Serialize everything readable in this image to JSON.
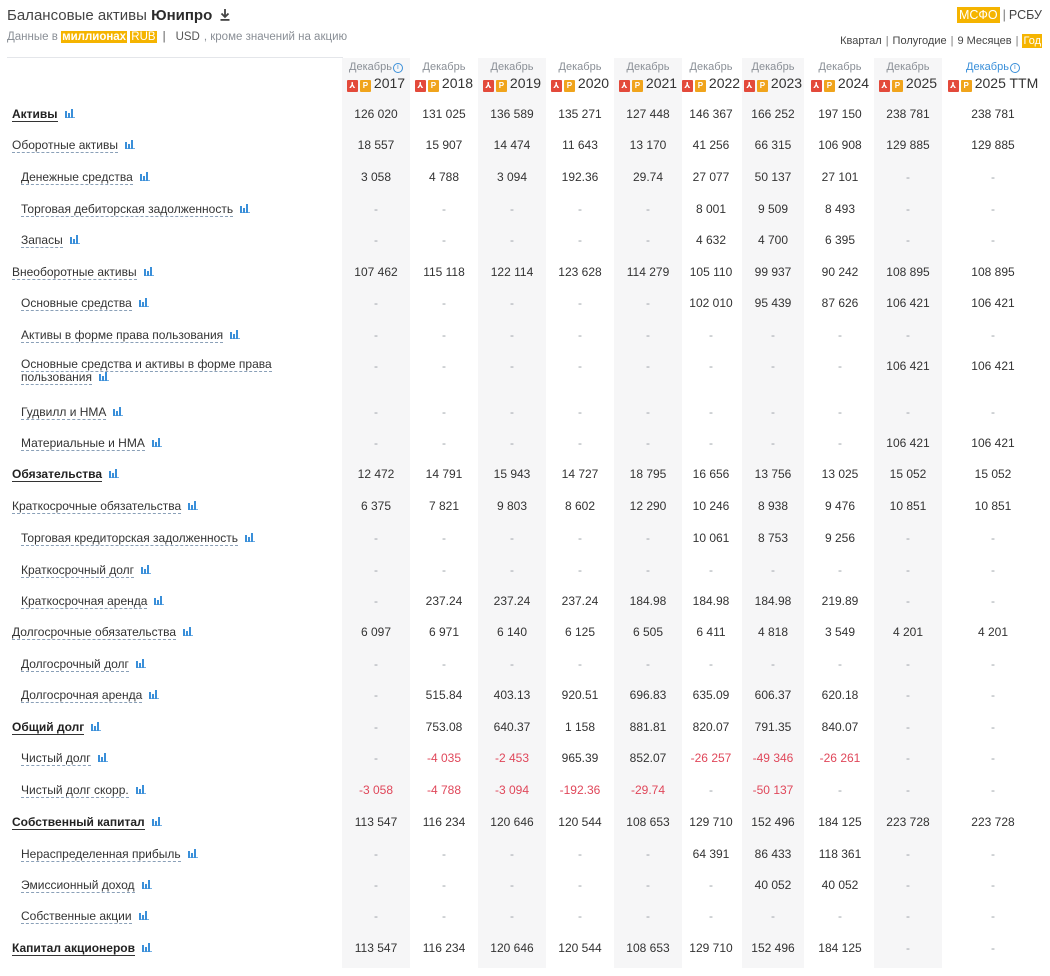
{
  "header": {
    "title_prefix": "Балансовые активы",
    "company": "Юнипро",
    "download_icon": "download-icon",
    "sub_prefix": "Данные в",
    "units": "миллионах",
    "currency_rub": "RUB",
    "currency_usd": "USD",
    "sub_suffix": ", кроме значений на акцию"
  },
  "standards": {
    "active": "МСФО",
    "other": "РСБУ"
  },
  "periods": {
    "quarter": "Квартал",
    "half": "Полугодие",
    "nine": "9 Месяцев",
    "year": "Год"
  },
  "columns": [
    {
      "month": "Декабрь",
      "year": "2017",
      "info": true
    },
    {
      "month": "Декабрь",
      "year": "2018"
    },
    {
      "month": "Декабрь",
      "year": "2019"
    },
    {
      "month": "Декабрь",
      "year": "2020"
    },
    {
      "month": "Декабрь",
      "year": "2021"
    },
    {
      "month": "Декабрь",
      "year": "2022"
    },
    {
      "month": "Декабрь",
      "year": "2023"
    },
    {
      "month": "Декабрь",
      "year": "2024"
    },
    {
      "month": "Декабрь",
      "year": "2025"
    },
    {
      "month": "Декабрь",
      "year": "2025 TTM",
      "info": true,
      "ttm": true
    }
  ],
  "icons": {
    "pdf": "pdf-icon",
    "report": "report-icon",
    "chart": "bar-chart-icon",
    "info": "info-icon"
  },
  "rows": [
    {
      "label": "Активы",
      "bold": true,
      "indent": false,
      "values": [
        "126 020",
        "131 025",
        "136 589",
        "135 271",
        "127 448",
        "146 367",
        "166 252",
        "197 150",
        "238 781",
        "238 781"
      ]
    },
    {
      "label": "Оборотные активы",
      "bold": false,
      "indent": false,
      "values": [
        "18 557",
        "15 907",
        "14 474",
        "11 643",
        "13 170",
        "41 256",
        "66 315",
        "106 908",
        "129 885",
        "129 885"
      ]
    },
    {
      "label": "Денежные средства",
      "bold": false,
      "indent": true,
      "values": [
        "3 058",
        "4 788",
        "3 094",
        "192.36",
        "29.74",
        "27 077",
        "50 137",
        "27 101",
        "-",
        "-"
      ]
    },
    {
      "label": "Торговая дебиторская задолженность",
      "bold": false,
      "indent": true,
      "values": [
        "-",
        "-",
        "-",
        "-",
        "-",
        "8 001",
        "9 509",
        "8 493",
        "-",
        "-"
      ]
    },
    {
      "label": "Запасы",
      "bold": false,
      "indent": true,
      "values": [
        "-",
        "-",
        "-",
        "-",
        "-",
        "4 632",
        "4 700",
        "6 395",
        "-",
        "-"
      ]
    },
    {
      "label": "Внеоборотные активы",
      "bold": false,
      "indent": false,
      "values": [
        "107 462",
        "115 118",
        "122 114",
        "123 628",
        "114 279",
        "105 110",
        "99 937",
        "90 242",
        "108 895",
        "108 895"
      ]
    },
    {
      "label": "Основные средства",
      "bold": false,
      "indent": true,
      "values": [
        "-",
        "-",
        "-",
        "-",
        "-",
        "102 010",
        "95 439",
        "87 626",
        "106 421",
        "106 421"
      ]
    },
    {
      "label": "Активы в форме права пользования",
      "bold": false,
      "indent": true,
      "values": [
        "-",
        "-",
        "-",
        "-",
        "-",
        "-",
        "-",
        "-",
        "-",
        "-"
      ]
    },
    {
      "label": "Основные средства и активы в форме права пользования",
      "bold": false,
      "indent": true,
      "two_line": true,
      "values": [
        "-",
        "-",
        "-",
        "-",
        "-",
        "-",
        "-",
        "-",
        "106 421",
        "106 421"
      ]
    },
    {
      "label": "Гудвилл и НМА",
      "bold": false,
      "indent": true,
      "values": [
        "-",
        "-",
        "-",
        "-",
        "-",
        "-",
        "-",
        "-",
        "-",
        "-"
      ]
    },
    {
      "label": "Материальные и НМА",
      "bold": false,
      "indent": true,
      "values": [
        "-",
        "-",
        "-",
        "-",
        "-",
        "-",
        "-",
        "-",
        "106 421",
        "106 421"
      ]
    },
    {
      "label": "Обязательства",
      "bold": true,
      "indent": false,
      "values": [
        "12 472",
        "14 791",
        "15 943",
        "14 727",
        "18 795",
        "16 656",
        "13 756",
        "13 025",
        "15 052",
        "15 052"
      ]
    },
    {
      "label": "Краткосрочные обязательства",
      "bold": false,
      "indent": false,
      "values": [
        "6 375",
        "7 821",
        "9 803",
        "8 602",
        "12 290",
        "10 246",
        "8 938",
        "9 476",
        "10 851",
        "10 851"
      ]
    },
    {
      "label": "Торговая кредиторская задолженность",
      "bold": false,
      "indent": true,
      "values": [
        "-",
        "-",
        "-",
        "-",
        "-",
        "10 061",
        "8 753",
        "9 256",
        "-",
        "-"
      ]
    },
    {
      "label": "Краткосрочный долг",
      "bold": false,
      "indent": true,
      "values": [
        "-",
        "-",
        "-",
        "-",
        "-",
        "-",
        "-",
        "-",
        "-",
        "-"
      ]
    },
    {
      "label": "Краткосрочная аренда",
      "bold": false,
      "indent": true,
      "values": [
        "-",
        "237.24",
        "237.24",
        "237.24",
        "184.98",
        "184.98",
        "184.98",
        "219.89",
        "-",
        "-"
      ]
    },
    {
      "label": "Долгосрочные обязательства",
      "bold": false,
      "indent": false,
      "values": [
        "6 097",
        "6 971",
        "6 140",
        "6 125",
        "6 505",
        "6 411",
        "4 818",
        "3 549",
        "4 201",
        "4 201"
      ]
    },
    {
      "label": "Долгосрочный долг",
      "bold": false,
      "indent": true,
      "values": [
        "-",
        "-",
        "-",
        "-",
        "-",
        "-",
        "-",
        "-",
        "-",
        "-"
      ]
    },
    {
      "label": "Долгосрочная аренда",
      "bold": false,
      "indent": true,
      "values": [
        "-",
        "515.84",
        "403.13",
        "920.51",
        "696.83",
        "635.09",
        "606.37",
        "620.18",
        "-",
        "-"
      ]
    },
    {
      "label": "Общий долг",
      "bold": true,
      "indent": false,
      "values": [
        "-",
        "753.08",
        "640.37",
        "1 158",
        "881.81",
        "820.07",
        "791.35",
        "840.07",
        "-",
        "-"
      ]
    },
    {
      "label": "Чистый долг",
      "bold": false,
      "indent": true,
      "values": [
        "-",
        "-4 035",
        "-2 453",
        "965.39",
        "852.07",
        "-26 257",
        "-49 346",
        "-26 261",
        "-",
        "-"
      ]
    },
    {
      "label": "Чистый долг скорр.",
      "bold": false,
      "indent": true,
      "values": [
        "-3 058",
        "-4 788",
        "-3 094",
        "-192.36",
        "-29.74",
        "-",
        "-50 137",
        "-",
        "-",
        "-"
      ]
    },
    {
      "label": "Собственный капитал",
      "bold": true,
      "indent": false,
      "values": [
        "113 547",
        "116 234",
        "120 646",
        "120 544",
        "108 653",
        "129 710",
        "152 496",
        "184 125",
        "223 728",
        "223 728"
      ]
    },
    {
      "label": "Нераспределенная прибыль",
      "bold": false,
      "indent": true,
      "values": [
        "-",
        "-",
        "-",
        "-",
        "-",
        "64 391",
        "86 433",
        "118 361",
        "-",
        "-"
      ]
    },
    {
      "label": "Эмиссионный доход",
      "bold": false,
      "indent": true,
      "values": [
        "-",
        "-",
        "-",
        "-",
        "-",
        "-",
        "40 052",
        "40 052",
        "-",
        "-"
      ]
    },
    {
      "label": "Собственные акции",
      "bold": false,
      "indent": true,
      "values": [
        "-",
        "-",
        "-",
        "-",
        "-",
        "-",
        "-",
        "-",
        "-",
        "-"
      ]
    },
    {
      "label": "Капитал акционеров",
      "bold": true,
      "indent": false,
      "values": [
        "113 547",
        "116 234",
        "120 646",
        "120 544",
        "108 653",
        "129 710",
        "152 496",
        "184 125",
        "-",
        "-"
      ]
    }
  ]
}
